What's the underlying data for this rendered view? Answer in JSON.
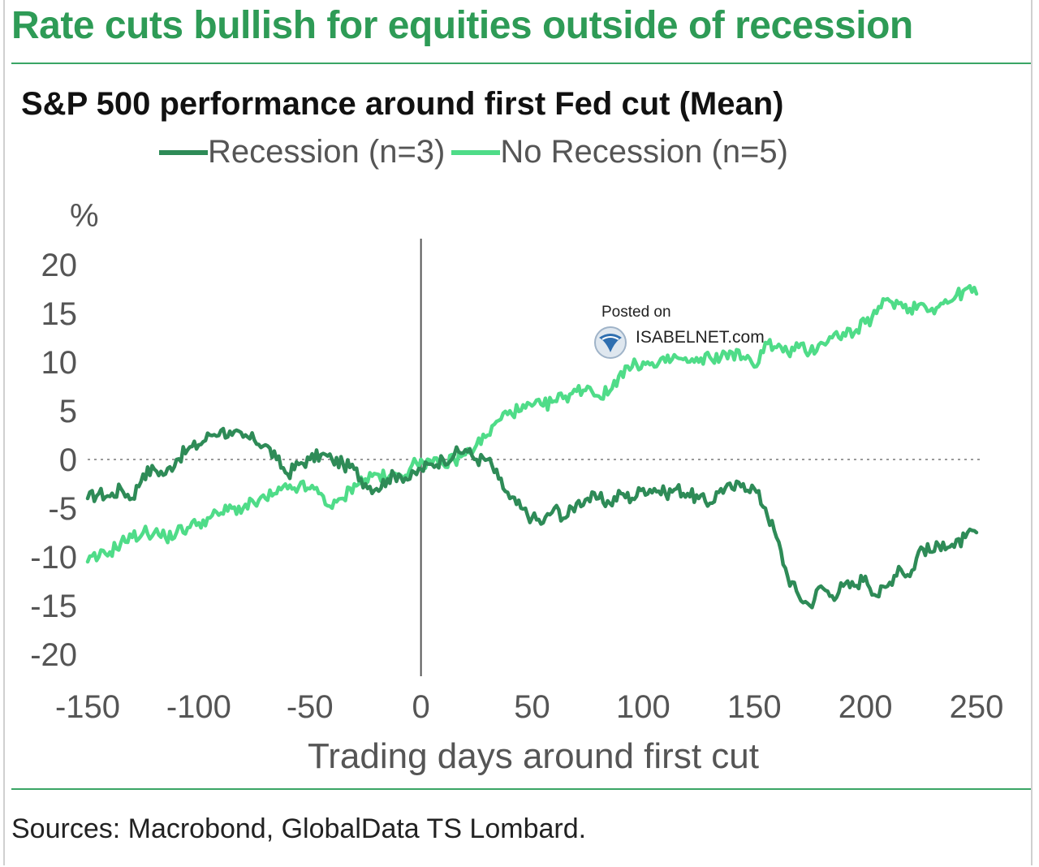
{
  "headline": "Rate cuts bullish for equities outside of recession",
  "source": "Sources:  Macrobond, GlobalData TS Lombard.",
  "watermark": {
    "posted": "Posted on",
    "site": "ISABELNET.com"
  },
  "colors": {
    "recession": "#2e8b57",
    "no_recession": "#4fdc88",
    "accent": "#2e9b56"
  },
  "chart_data": {
    "type": "line",
    "title": "S&P 500 performance around first Fed cut (Mean)",
    "ylabel": "%",
    "xlabel": "Trading days around first cut",
    "xlim": [
      -150,
      250
    ],
    "ylim": [
      -20,
      20
    ],
    "xticks": [
      "-150",
      "-100",
      "-50",
      "0",
      "50",
      "100",
      "150",
      "200",
      "250"
    ],
    "yticks": [
      "20",
      "15",
      "10",
      "5",
      "0",
      "-5",
      "-10",
      "-15",
      "-20"
    ],
    "reference_lines": {
      "vertical_x": 0,
      "horizontal_y": 0
    },
    "series": [
      {
        "name": "Recession (n=3)",
        "points": [
          [
            -150,
            -4
          ],
          [
            -145,
            -3.5
          ],
          [
            -140,
            -3.8
          ],
          [
            -135,
            -3
          ],
          [
            -130,
            -4
          ],
          [
            -125,
            -1.5
          ],
          [
            -120,
            -1
          ],
          [
            -115,
            -1.5
          ],
          [
            -110,
            0
          ],
          [
            -105,
            1
          ],
          [
            -100,
            1.5
          ],
          [
            -95,
            2.5
          ],
          [
            -90,
            3
          ],
          [
            -85,
            2.5
          ],
          [
            -80,
            2.3
          ],
          [
            -75,
            2
          ],
          [
            -70,
            1.5
          ],
          [
            -65,
            0
          ],
          [
            -60,
            -1.5
          ],
          [
            -55,
            -0.5
          ],
          [
            -50,
            0
          ],
          [
            -45,
            0.5
          ],
          [
            -40,
            0
          ],
          [
            -35,
            -0.5
          ],
          [
            -30,
            -1
          ],
          [
            -25,
            -2.5
          ],
          [
            -20,
            -3
          ],
          [
            -15,
            -2
          ],
          [
            -10,
            -1.5
          ],
          [
            -5,
            -2
          ],
          [
            0,
            -1
          ],
          [
            5,
            -0.5
          ],
          [
            10,
            0
          ],
          [
            15,
            0.5
          ],
          [
            20,
            1
          ],
          [
            25,
            0
          ],
          [
            30,
            0
          ],
          [
            35,
            -2
          ],
          [
            40,
            -4
          ],
          [
            45,
            -5
          ],
          [
            50,
            -6
          ],
          [
            55,
            -6.5
          ],
          [
            60,
            -5
          ],
          [
            65,
            -6
          ],
          [
            70,
            -4.5
          ],
          [
            75,
            -4
          ],
          [
            80,
            -4
          ],
          [
            85,
            -4.5
          ],
          [
            90,
            -3.5
          ],
          [
            95,
            -4
          ],
          [
            100,
            -3
          ],
          [
            105,
            -3
          ],
          [
            110,
            -3.5
          ],
          [
            115,
            -3
          ],
          [
            120,
            -3.5
          ],
          [
            125,
            -4
          ],
          [
            130,
            -4.5
          ],
          [
            135,
            -3
          ],
          [
            140,
            -3
          ],
          [
            145,
            -2.5
          ],
          [
            150,
            -3
          ],
          [
            155,
            -5
          ],
          [
            160,
            -8
          ],
          [
            165,
            -12
          ],
          [
            170,
            -14
          ],
          [
            175,
            -15
          ],
          [
            180,
            -13
          ],
          [
            185,
            -14
          ],
          [
            190,
            -13
          ],
          [
            195,
            -13
          ],
          [
            200,
            -12
          ],
          [
            205,
            -14
          ],
          [
            210,
            -13
          ],
          [
            215,
            -11
          ],
          [
            220,
            -12
          ],
          [
            225,
            -9
          ],
          [
            230,
            -9.5
          ],
          [
            235,
            -8.5
          ],
          [
            240,
            -9
          ],
          [
            245,
            -8
          ],
          [
            250,
            -7.5
          ]
        ]
      },
      {
        "name": "No Recession (n=5)",
        "points": [
          [
            -150,
            -10.5
          ],
          [
            -145,
            -10
          ],
          [
            -140,
            -9.5
          ],
          [
            -135,
            -8.5
          ],
          [
            -130,
            -8
          ],
          [
            -125,
            -7.5
          ],
          [
            -120,
            -7.5
          ],
          [
            -115,
            -8
          ],
          [
            -110,
            -7.5
          ],
          [
            -105,
            -7
          ],
          [
            -100,
            -6.5
          ],
          [
            -95,
            -6
          ],
          [
            -90,
            -5.5
          ],
          [
            -85,
            -5
          ],
          [
            -80,
            -5
          ],
          [
            -75,
            -4.5
          ],
          [
            -70,
            -4
          ],
          [
            -65,
            -3.5
          ],
          [
            -60,
            -3
          ],
          [
            -55,
            -2.8
          ],
          [
            -50,
            -3
          ],
          [
            -45,
            -3.5
          ],
          [
            -40,
            -5
          ],
          [
            -35,
            -4
          ],
          [
            -30,
            -2.5
          ],
          [
            -25,
            -2
          ],
          [
            -20,
            -1.5
          ],
          [
            -15,
            -2
          ],
          [
            -10,
            -1.5
          ],
          [
            -5,
            -1
          ],
          [
            0,
            0
          ],
          [
            5,
            -0.5
          ],
          [
            10,
            -0.5
          ],
          [
            15,
            0
          ],
          [
            20,
            0.5
          ],
          [
            25,
            1.5
          ],
          [
            30,
            2.5
          ],
          [
            35,
            4
          ],
          [
            40,
            5
          ],
          [
            45,
            5
          ],
          [
            50,
            5.5
          ],
          [
            55,
            5.5
          ],
          [
            60,
            6
          ],
          [
            65,
            6.5
          ],
          [
            70,
            7
          ],
          [
            75,
            7.5
          ],
          [
            80,
            6.5
          ],
          [
            85,
            7
          ],
          [
            90,
            9
          ],
          [
            95,
            9.5
          ],
          [
            100,
            10
          ],
          [
            105,
            9.5
          ],
          [
            110,
            10
          ],
          [
            115,
            10.5
          ],
          [
            120,
            10
          ],
          [
            125,
            10
          ],
          [
            130,
            10.5
          ],
          [
            135,
            10.5
          ],
          [
            140,
            11
          ],
          [
            145,
            10.5
          ],
          [
            150,
            9.5
          ],
          [
            155,
            12
          ],
          [
            160,
            11.5
          ],
          [
            165,
            11
          ],
          [
            170,
            11.5
          ],
          [
            175,
            11
          ],
          [
            180,
            12
          ],
          [
            185,
            12.5
          ],
          [
            190,
            13
          ],
          [
            195,
            13
          ],
          [
            200,
            14
          ],
          [
            205,
            15
          ],
          [
            210,
            16.5
          ],
          [
            215,
            16
          ],
          [
            220,
            15.5
          ],
          [
            225,
            16
          ],
          [
            230,
            15.5
          ],
          [
            235,
            16
          ],
          [
            240,
            16.5
          ],
          [
            245,
            17.5
          ],
          [
            250,
            17
          ]
        ]
      }
    ]
  }
}
